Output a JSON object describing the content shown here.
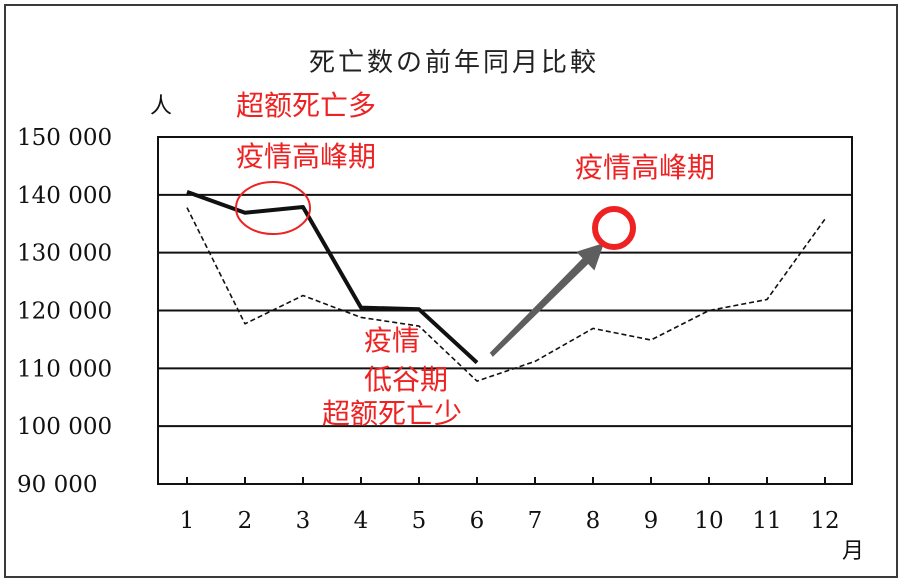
{
  "chart_data": {
    "type": "line",
    "title": "死亡数の前年同月比較",
    "ylabel": "人",
    "xlabel": "月",
    "ylim": [
      90000,
      150000
    ],
    "yticks": [
      90000,
      100000,
      110000,
      120000,
      130000,
      140000,
      150000
    ],
    "ytick_labels": [
      "90 000",
      "100 000",
      "110 000",
      "120 000",
      "130 000",
      "140 000",
      "150 000"
    ],
    "categories": [
      "1",
      "2",
      "3",
      "4",
      "5",
      "6",
      "7",
      "8",
      "9",
      "10",
      "11",
      "12"
    ],
    "series": [
      {
        "style": "solid-bold",
        "values": [
          140500,
          136900,
          137900,
          120500,
          120200,
          111000,
          null,
          null,
          null,
          null,
          null,
          null
        ]
      },
      {
        "style": "dashed",
        "values": [
          137800,
          117700,
          122600,
          118800,
          117300,
          107800,
          111200,
          116900,
          114900,
          120000,
          121900,
          135800
        ]
      }
    ],
    "grid": "horizontal",
    "annotations": [
      {
        "id": "excess_high",
        "lines": [
          "超额死亡多",
          "疫情高峰期"
        ],
        "color": "#ee2222"
      },
      {
        "id": "peak_right",
        "lines": [
          "疫情高峰期"
        ],
        "color": "#ee2222"
      },
      {
        "id": "low",
        "lines": [
          "疫情",
          "低谷期",
          "超额死亡少"
        ],
        "color": "#ee2222"
      }
    ]
  }
}
